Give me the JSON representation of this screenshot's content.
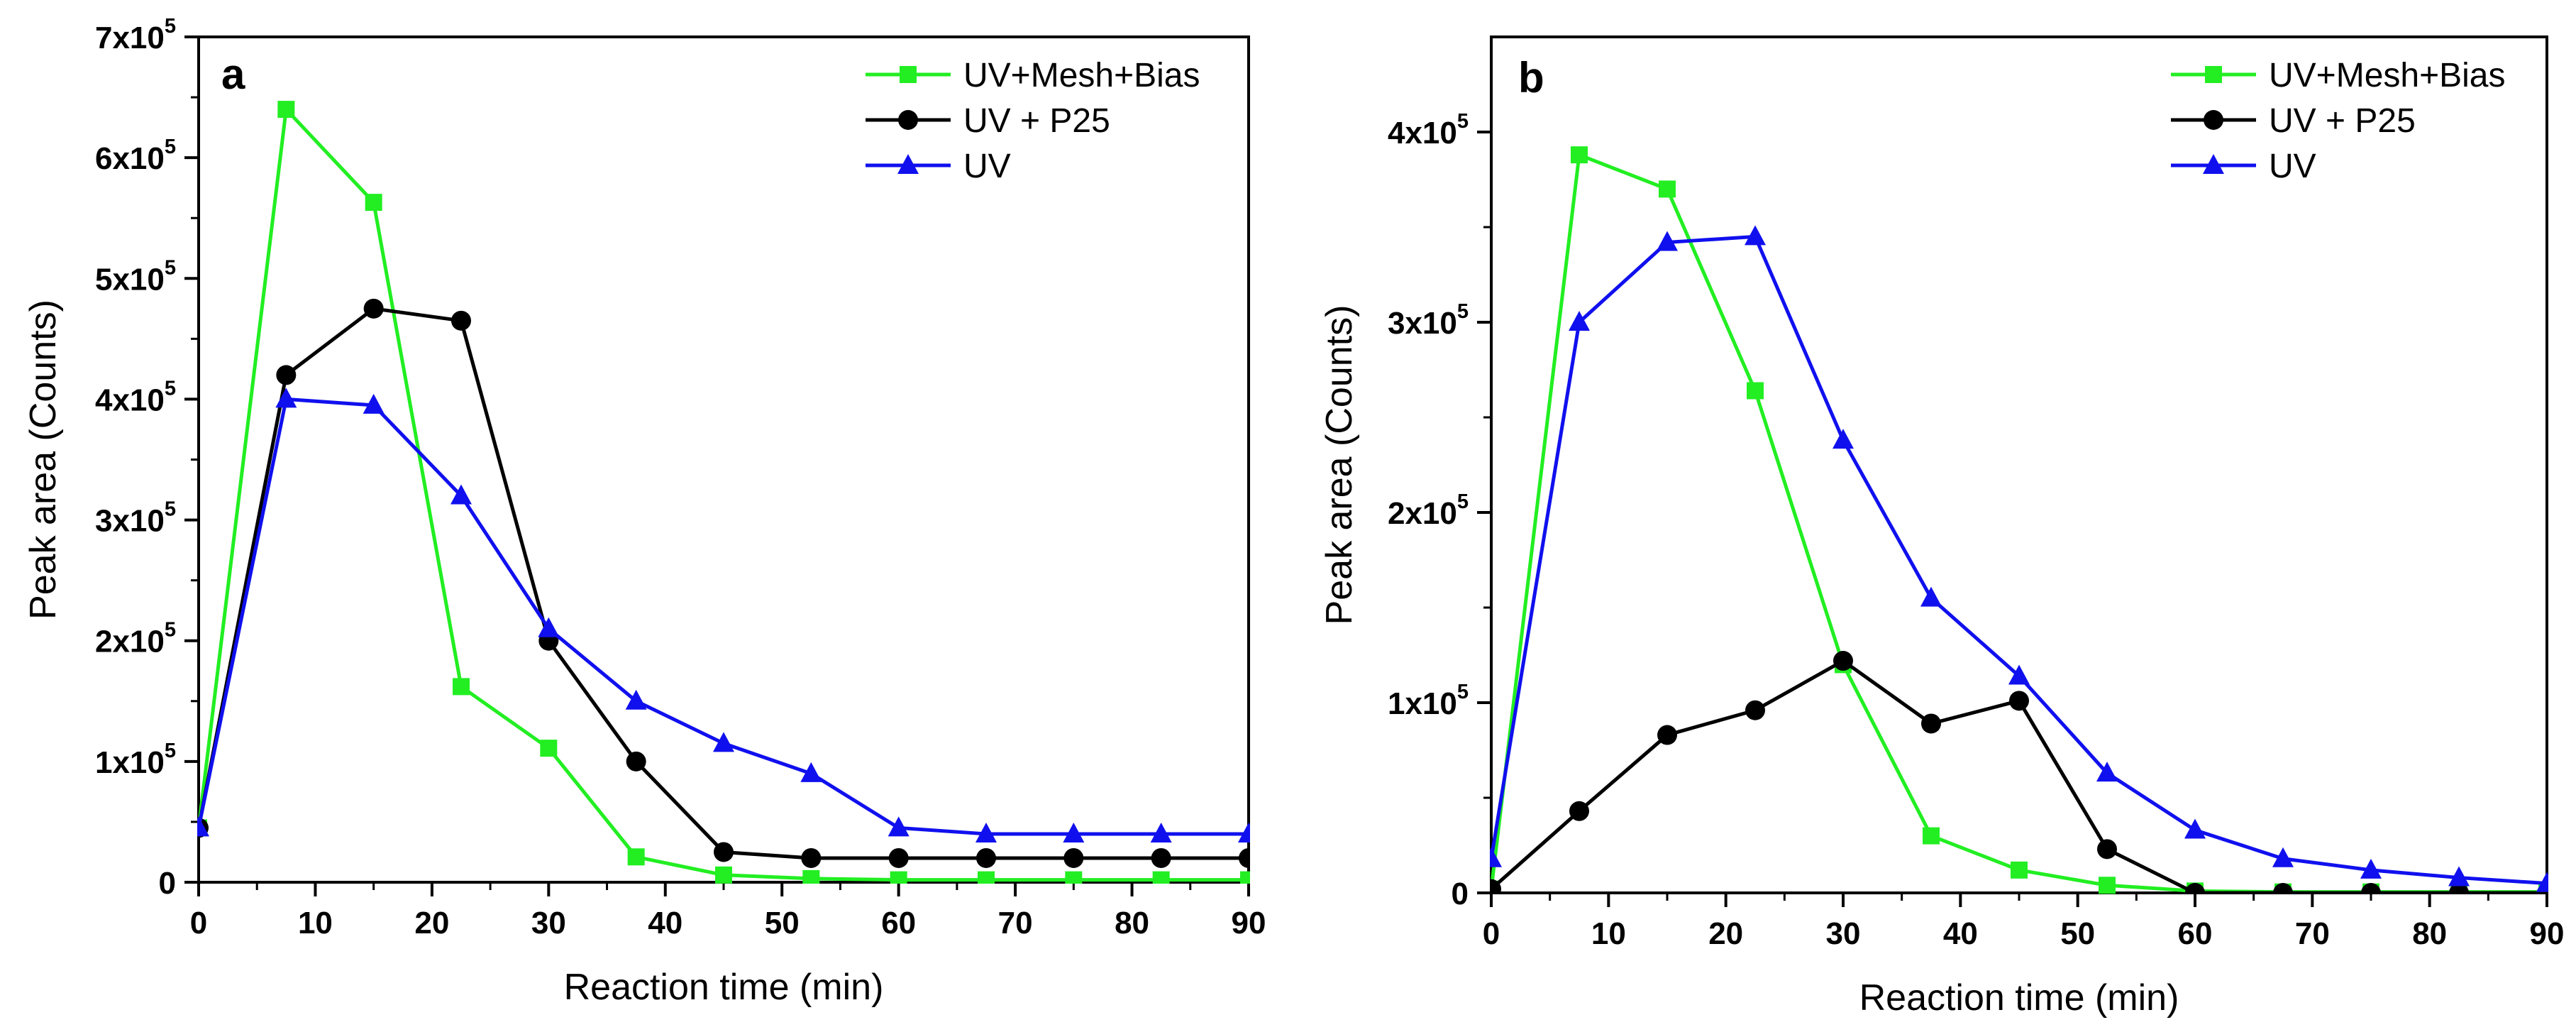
{
  "chart_data": [
    {
      "type": "line",
      "panel": "a",
      "xlabel": "Reaction time (min)",
      "ylabel": "Peak area (Counts)",
      "xlim": [
        0,
        90
      ],
      "ylim": [
        0,
        700000
      ],
      "xticks": [
        0,
        10,
        20,
        30,
        40,
        50,
        60,
        70,
        80,
        90
      ],
      "xtick_labels": [
        "0",
        "10",
        "20",
        "30",
        "40",
        "50",
        "60",
        "70",
        "80",
        "90"
      ],
      "yticks": [
        0,
        100000,
        200000,
        300000,
        400000,
        500000,
        600000,
        700000
      ],
      "ytick_labels": [
        {
          "base": "0",
          "exp": ""
        },
        {
          "base": "1x10",
          "exp": "5"
        },
        {
          "base": "2x10",
          "exp": "5"
        },
        {
          "base": "3x10",
          "exp": "5"
        },
        {
          "base": "4x10",
          "exp": "5"
        },
        {
          "base": "5x10",
          "exp": "5"
        },
        {
          "base": "6x10",
          "exp": "5"
        },
        {
          "base": "7x10",
          "exp": "5"
        }
      ],
      "legend_position": "top-right",
      "series": [
        {
          "name": "UV+Mesh+Bias",
          "color": "#22ee22",
          "marker": "square",
          "x": [
            0,
            7.5,
            15,
            22.5,
            30,
            37.5,
            45,
            52.5,
            60,
            67.5,
            75,
            82.5,
            90
          ],
          "y": [
            45000,
            640000,
            563000,
            162000,
            111000,
            21000,
            6000,
            3000,
            2000,
            2000,
            2000,
            2000,
            2000
          ]
        },
        {
          "name": "UV + P25",
          "color": "#000000",
          "marker": "circle",
          "x": [
            0,
            7.5,
            15,
            22.5,
            30,
            37.5,
            45,
            52.5,
            60,
            67.5,
            75,
            82.5,
            90
          ],
          "y": [
            45000,
            420000,
            475000,
            465000,
            200000,
            100000,
            25000,
            20000,
            20000,
            20000,
            20000,
            20000,
            20000
          ]
        },
        {
          "name": "UV",
          "color": "#1010ee",
          "marker": "triangle",
          "x": [
            0,
            7.5,
            15,
            22.5,
            30,
            37.5,
            45,
            52.5,
            60,
            67.5,
            75,
            82.5,
            90
          ],
          "y": [
            45000,
            400000,
            395000,
            320000,
            210000,
            150000,
            115000,
            90000,
            45000,
            40000,
            40000,
            40000,
            40000
          ]
        }
      ]
    },
    {
      "type": "line",
      "panel": "b",
      "xlabel": "Reaction time (min)",
      "ylabel": "Peak area (Counts)",
      "xlim": [
        0,
        90
      ],
      "ylim": [
        0,
        450000
      ],
      "xticks": [
        0,
        10,
        20,
        30,
        40,
        50,
        60,
        70,
        80,
        90
      ],
      "xtick_labels": [
        "0",
        "10",
        "20",
        "30",
        "40",
        "50",
        "60",
        "70",
        "80",
        "90"
      ],
      "yticks": [
        0,
        100000,
        200000,
        300000,
        400000
      ],
      "ytick_labels": [
        {
          "base": "0",
          "exp": ""
        },
        {
          "base": "1x10",
          "exp": "5"
        },
        {
          "base": "2x10",
          "exp": "5"
        },
        {
          "base": "3x10",
          "exp": "5"
        },
        {
          "base": "4x10",
          "exp": "5"
        }
      ],
      "legend_position": "top-right",
      "series": [
        {
          "name": "UV+Mesh+Bias",
          "color": "#22ee22",
          "marker": "square",
          "x": [
            0,
            7.5,
            15,
            22.5,
            30,
            37.5,
            45,
            52.5,
            60,
            67.5,
            75,
            82.5,
            90
          ],
          "y": [
            2000,
            388000,
            370000,
            264000,
            120000,
            30000,
            12000,
            4000,
            1000,
            500,
            500,
            500,
            500
          ]
        },
        {
          "name": "UV + P25",
          "color": "#000000",
          "marker": "circle",
          "x": [
            0,
            7.5,
            15,
            22.5,
            30,
            37.5,
            45,
            52.5,
            60,
            67.5,
            75,
            82.5,
            90
          ],
          "y": [
            2000,
            43000,
            83000,
            96000,
            122000,
            89000,
            101000,
            23000,
            0,
            0,
            0,
            0,
            0
          ]
        },
        {
          "name": "UV",
          "color": "#1010ee",
          "marker": "triangle",
          "x": [
            0,
            7.5,
            15,
            22.5,
            30,
            37.5,
            45,
            52.5,
            60,
            67.5,
            75,
            82.5,
            90
          ],
          "y": [
            18000,
            300000,
            342000,
            345000,
            238000,
            155000,
            114000,
            63000,
            33000,
            18000,
            12000,
            8000,
            5000
          ]
        }
      ]
    }
  ]
}
